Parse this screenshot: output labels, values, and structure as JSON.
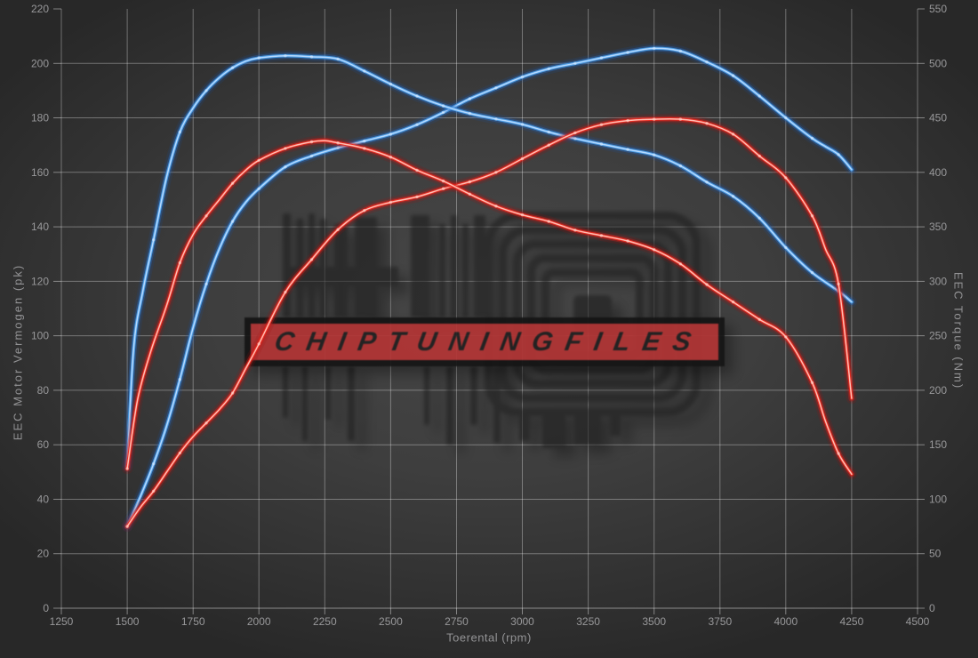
{
  "watermark": {
    "band_text": "CHIPTUNINGFILES",
    "band_color": "#b23535"
  },
  "chart_data": {
    "type": "line",
    "title": "",
    "xlabel": "Toerental (rpm)",
    "ylabel_left": "EEC Motor Vermogen (pk)",
    "ylabel_right": "EEC Torque (Nm)",
    "x_range": [
      1250,
      4500
    ],
    "y_left_range": [
      0,
      220
    ],
    "y_right_range": [
      0,
      550
    ],
    "x_ticks": [
      1250,
      1500,
      1750,
      2000,
      2250,
      2500,
      2750,
      3000,
      3250,
      3500,
      3750,
      4000,
      4250,
      4500
    ],
    "y_left_ticks": [
      0,
      20,
      40,
      60,
      80,
      100,
      120,
      140,
      160,
      180,
      200,
      220
    ],
    "y_right_ticks": [
      0,
      50,
      100,
      150,
      200,
      250,
      300,
      350,
      400,
      450,
      500,
      550
    ],
    "grid": true,
    "legend": "none",
    "series": [
      {
        "name": "blue-power",
        "axis": "left",
        "unit": "pk",
        "color": "#4d9fe8",
        "points": [
          [
            1500,
            30
          ],
          [
            1550,
            41
          ],
          [
            1600,
            53
          ],
          [
            1650,
            67
          ],
          [
            1700,
            84
          ],
          [
            1750,
            103
          ],
          [
            1800,
            119
          ],
          [
            1850,
            132
          ],
          [
            1900,
            142
          ],
          [
            1950,
            149
          ],
          [
            2000,
            154
          ],
          [
            2100,
            162
          ],
          [
            2200,
            166
          ],
          [
            2300,
            169
          ],
          [
            2400,
            171.5
          ],
          [
            2500,
            174
          ],
          [
            2600,
            177.5
          ],
          [
            2700,
            182
          ],
          [
            2800,
            187
          ],
          [
            2900,
            191
          ],
          [
            3000,
            195
          ],
          [
            3100,
            198
          ],
          [
            3200,
            200
          ],
          [
            3300,
            202
          ],
          [
            3400,
            204
          ],
          [
            3500,
            205.5
          ],
          [
            3600,
            204.5
          ],
          [
            3700,
            200.5
          ],
          [
            3800,
            195.5
          ],
          [
            3900,
            188
          ],
          [
            4000,
            180
          ],
          [
            4100,
            172.5
          ],
          [
            4150,
            169.5
          ],
          [
            4200,
            166.5
          ],
          [
            4250,
            161
          ]
        ]
      },
      {
        "name": "blue-torque",
        "axis": "right",
        "unit": "Nm",
        "color": "#4d9fe8",
        "points": [
          [
            1500,
            130
          ],
          [
            1525,
            240
          ],
          [
            1560,
            292
          ],
          [
            1600,
            338
          ],
          [
            1650,
            396
          ],
          [
            1700,
            437
          ],
          [
            1750,
            459
          ],
          [
            1800,
            475
          ],
          [
            1850,
            487
          ],
          [
            1900,
            496
          ],
          [
            1950,
            502
          ],
          [
            2000,
            505
          ],
          [
            2100,
            507
          ],
          [
            2200,
            506
          ],
          [
            2300,
            504
          ],
          [
            2400,
            493
          ],
          [
            2500,
            481
          ],
          [
            2600,
            470
          ],
          [
            2700,
            461
          ],
          [
            2800,
            454
          ],
          [
            2900,
            449
          ],
          [
            3000,
            444
          ],
          [
            3100,
            437
          ],
          [
            3200,
            431
          ],
          [
            3300,
            426
          ],
          [
            3400,
            421
          ],
          [
            3500,
            416
          ],
          [
            3600,
            406
          ],
          [
            3700,
            391
          ],
          [
            3800,
            378
          ],
          [
            3900,
            358
          ],
          [
            4000,
            331
          ],
          [
            4100,
            308
          ],
          [
            4200,
            291
          ],
          [
            4250,
            281
          ]
        ]
      },
      {
        "name": "red-power",
        "axis": "left",
        "unit": "pk",
        "color": "#e03228",
        "points": [
          [
            1500,
            30
          ],
          [
            1550,
            37
          ],
          [
            1600,
            43
          ],
          [
            1650,
            50
          ],
          [
            1700,
            57
          ],
          [
            1750,
            63
          ],
          [
            1800,
            68
          ],
          [
            1850,
            73
          ],
          [
            1900,
            79
          ],
          [
            1950,
            88
          ],
          [
            2000,
            97
          ],
          [
            2100,
            116
          ],
          [
            2200,
            128
          ],
          [
            2300,
            139
          ],
          [
            2400,
            146
          ],
          [
            2500,
            149
          ],
          [
            2600,
            151
          ],
          [
            2700,
            154
          ],
          [
            2800,
            156.5
          ],
          [
            2900,
            160
          ],
          [
            3000,
            165
          ],
          [
            3100,
            170
          ],
          [
            3200,
            174.5
          ],
          [
            3300,
            177.5
          ],
          [
            3400,
            179
          ],
          [
            3500,
            179.5
          ],
          [
            3600,
            179.5
          ],
          [
            3700,
            178
          ],
          [
            3800,
            174
          ],
          [
            3900,
            166
          ],
          [
            4000,
            158
          ],
          [
            4100,
            144
          ],
          [
            4150,
            132
          ],
          [
            4200,
            119
          ],
          [
            4250,
            77
          ]
        ]
      },
      {
        "name": "red-torque",
        "axis": "right",
        "unit": "Nm",
        "color": "#e03228",
        "points": [
          [
            1500,
            128
          ],
          [
            1540,
            192
          ],
          [
            1590,
            236
          ],
          [
            1650,
            278
          ],
          [
            1700,
            317
          ],
          [
            1750,
            343
          ],
          [
            1800,
            360
          ],
          [
            1850,
            375
          ],
          [
            1900,
            390
          ],
          [
            1950,
            402
          ],
          [
            2000,
            411
          ],
          [
            2100,
            422
          ],
          [
            2200,
            428
          ],
          [
            2250,
            429
          ],
          [
            2300,
            427
          ],
          [
            2400,
            422
          ],
          [
            2500,
            414
          ],
          [
            2600,
            402
          ],
          [
            2700,
            392
          ],
          [
            2800,
            380
          ],
          [
            2900,
            369
          ],
          [
            3000,
            361
          ],
          [
            3100,
            355
          ],
          [
            3200,
            347
          ],
          [
            3300,
            342
          ],
          [
            3400,
            337
          ],
          [
            3500,
            329
          ],
          [
            3600,
            316
          ],
          [
            3700,
            297
          ],
          [
            3800,
            281
          ],
          [
            3900,
            265
          ],
          [
            4000,
            249
          ],
          [
            4100,
            207
          ],
          [
            4150,
            172
          ],
          [
            4200,
            142
          ],
          [
            4250,
            123
          ]
        ]
      }
    ]
  }
}
